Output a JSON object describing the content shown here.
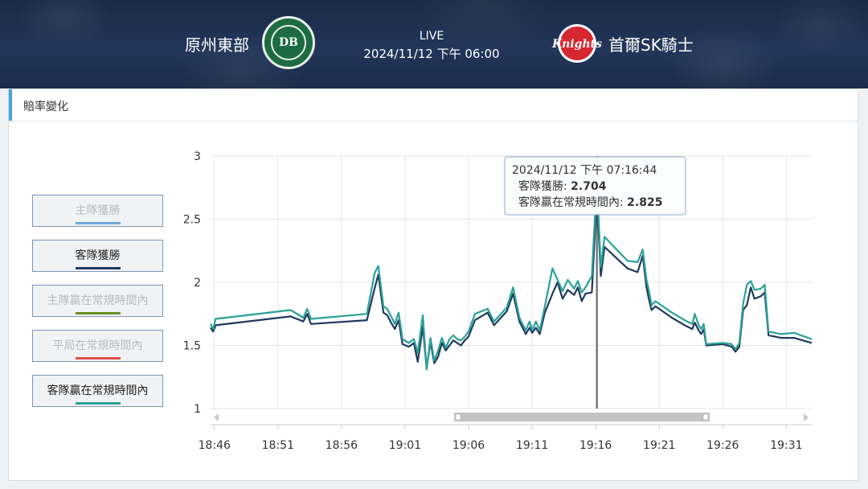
{
  "header": {
    "home_team": "原州東部",
    "home_logo_text": "DB",
    "live_label": "LIVE",
    "datetime": "2024/11/12 下午 06:00",
    "away_team": "首爾SK騎士",
    "away_logo_text": "Knights"
  },
  "panel": {
    "title": "賠率變化"
  },
  "legend": [
    {
      "label": "主隊獲勝",
      "color": "#6fa8dc",
      "active": false
    },
    {
      "label": "客隊獲勝",
      "color": "#1f3a5f",
      "active": true
    },
    {
      "label": "主隊贏在常規時間內",
      "color": "#6b8e23",
      "active": false
    },
    {
      "label": "平局在常規時間內",
      "color": "#e05050",
      "active": false
    },
    {
      "label": "客隊贏在常規時間內",
      "color": "#2aa198",
      "active": true
    }
  ],
  "tooltip": {
    "time": "2024/11/12 下午 07:16:44",
    "line1_label": "客隊獲勝:",
    "line1_value": "2.704",
    "line2_label": "客隊贏在常規時間內:",
    "line2_value": "2.825"
  },
  "chart_data": {
    "type": "line",
    "ylim": [
      1,
      3
    ],
    "yticks": [
      "3",
      "2.5",
      "2",
      "1.5",
      "1"
    ],
    "xlim_minutes": [
      45.7,
      93
    ],
    "xticks": [
      {
        "label": "18:46",
        "m": 46
      },
      {
        "label": "18:51",
        "m": 51
      },
      {
        "label": "18:56",
        "m": 56
      },
      {
        "label": "19:01",
        "m": 61
      },
      {
        "label": "19:06",
        "m": 66
      },
      {
        "label": "19:11",
        "m": 71
      },
      {
        "label": "19:16",
        "m": 76
      },
      {
        "label": "19:21",
        "m": 81
      },
      {
        "label": "19:26",
        "m": 86
      },
      {
        "label": "19:31",
        "m": 91
      }
    ],
    "crosshair_m": 76.1,
    "series": [
      {
        "name": "客隊獲勝",
        "color": "#1f3a5f",
        "points": [
          [
            45.7,
            1.64
          ],
          [
            45.9,
            1.61
          ],
          [
            46.1,
            1.66
          ],
          [
            52,
            1.73
          ],
          [
            53,
            1.69
          ],
          [
            53.3,
            1.75
          ],
          [
            53.6,
            1.67
          ],
          [
            58,
            1.7
          ],
          [
            58.6,
            1.95
          ],
          [
            58.9,
            2.06
          ],
          [
            59.3,
            1.76
          ],
          [
            59.6,
            1.74
          ],
          [
            59.9,
            1.68
          ],
          [
            60.2,
            1.63
          ],
          [
            60.5,
            1.7
          ],
          [
            60.8,
            1.51
          ],
          [
            61.3,
            1.49
          ],
          [
            61.7,
            1.52
          ],
          [
            62,
            1.37
          ],
          [
            62.4,
            1.65
          ],
          [
            62.7,
            1.32
          ],
          [
            63,
            1.53
          ],
          [
            63.3,
            1.36
          ],
          [
            63.6,
            1.41
          ],
          [
            63.9,
            1.52
          ],
          [
            64.2,
            1.46
          ],
          [
            64.5,
            1.5
          ],
          [
            64.8,
            1.54
          ],
          [
            65.1,
            1.52
          ],
          [
            65.4,
            1.5
          ],
          [
            65.7,
            1.54
          ],
          [
            66.0,
            1.57
          ],
          [
            66.5,
            1.7
          ],
          [
            67.5,
            1.76
          ],
          [
            68,
            1.66
          ],
          [
            69,
            1.77
          ],
          [
            69.5,
            1.91
          ],
          [
            70,
            1.69
          ],
          [
            70.5,
            1.59
          ],
          [
            70.8,
            1.64
          ],
          [
            71,
            1.6
          ],
          [
            71.3,
            1.64
          ],
          [
            71.6,
            1.59
          ],
          [
            72,
            1.76
          ],
          [
            72.6,
            1.91
          ],
          [
            73,
            2.0
          ],
          [
            73.4,
            1.87
          ],
          [
            73.8,
            1.94
          ],
          [
            74.3,
            1.9
          ],
          [
            74.6,
            1.96
          ],
          [
            74.9,
            1.85
          ],
          [
            75.2,
            1.91
          ],
          [
            75.7,
            1.92
          ],
          [
            76.1,
            2.7
          ],
          [
            76.4,
            2.05
          ],
          [
            76.7,
            2.28
          ],
          [
            78.5,
            2.11
          ],
          [
            79.3,
            2.08
          ],
          [
            79.7,
            2.21
          ],
          [
            80,
            1.96
          ],
          [
            80.2,
            1.86
          ],
          [
            80.4,
            1.78
          ],
          [
            80.7,
            1.81
          ],
          [
            82,
            1.72
          ],
          [
            83,
            1.66
          ],
          [
            83.6,
            1.63
          ],
          [
            83.8,
            1.68
          ],
          [
            84.1,
            1.62
          ],
          [
            84.3,
            1.59
          ],
          [
            84.5,
            1.63
          ],
          [
            84.7,
            1.5
          ],
          [
            86,
            1.51
          ],
          [
            86.7,
            1.49
          ],
          [
            87,
            1.45
          ],
          [
            87.3,
            1.49
          ],
          [
            87.6,
            1.78
          ],
          [
            87.9,
            1.82
          ],
          [
            88.2,
            1.96
          ],
          [
            88.5,
            1.87
          ],
          [
            89,
            1.89
          ],
          [
            89.3,
            1.92
          ],
          [
            89.6,
            1.58
          ],
          [
            90.6,
            1.56
          ],
          [
            91.6,
            1.56
          ],
          [
            93,
            1.52
          ]
        ]
      },
      {
        "name": "客隊贏在常規時間內",
        "color": "#2aa198",
        "points": [
          [
            45.7,
            1.67
          ],
          [
            45.9,
            1.63
          ],
          [
            46.1,
            1.71
          ],
          [
            52,
            1.78
          ],
          [
            53,
            1.72
          ],
          [
            53.3,
            1.79
          ],
          [
            53.6,
            1.71
          ],
          [
            58,
            1.75
          ],
          [
            58.6,
            2.07
          ],
          [
            58.9,
            2.13
          ],
          [
            59.3,
            1.81
          ],
          [
            59.6,
            1.79
          ],
          [
            59.9,
            1.73
          ],
          [
            60.2,
            1.67
          ],
          [
            60.5,
            1.76
          ],
          [
            60.8,
            1.55
          ],
          [
            61.3,
            1.52
          ],
          [
            61.7,
            1.55
          ],
          [
            62,
            1.44
          ],
          [
            62.4,
            1.74
          ],
          [
            62.7,
            1.31
          ],
          [
            63,
            1.56
          ],
          [
            63.3,
            1.38
          ],
          [
            63.6,
            1.46
          ],
          [
            63.9,
            1.56
          ],
          [
            64.2,
            1.48
          ],
          [
            64.5,
            1.55
          ],
          [
            64.8,
            1.58
          ],
          [
            65.1,
            1.55
          ],
          [
            65.4,
            1.54
          ],
          [
            65.7,
            1.57
          ],
          [
            66.0,
            1.61
          ],
          [
            66.5,
            1.75
          ],
          [
            67.5,
            1.79
          ],
          [
            68,
            1.69
          ],
          [
            69,
            1.8
          ],
          [
            69.5,
            1.96
          ],
          [
            70,
            1.72
          ],
          [
            70.5,
            1.62
          ],
          [
            70.8,
            1.69
          ],
          [
            71,
            1.62
          ],
          [
            71.3,
            1.69
          ],
          [
            71.6,
            1.62
          ],
          [
            72,
            1.81
          ],
          [
            72.6,
            2.11
          ],
          [
            73,
            2.02
          ],
          [
            73.4,
            1.93
          ],
          [
            73.8,
            2.02
          ],
          [
            74.3,
            1.95
          ],
          [
            74.6,
            2.01
          ],
          [
            74.9,
            1.92
          ],
          [
            75.2,
            1.96
          ],
          [
            75.7,
            2.05
          ],
          [
            76.1,
            2.82
          ],
          [
            76.4,
            2.12
          ],
          [
            76.7,
            2.36
          ],
          [
            78.5,
            2.17
          ],
          [
            79.3,
            2.16
          ],
          [
            79.7,
            2.26
          ],
          [
            80,
            2.02
          ],
          [
            80.2,
            1.93
          ],
          [
            80.4,
            1.82
          ],
          [
            80.7,
            1.85
          ],
          [
            82,
            1.76
          ],
          [
            83,
            1.7
          ],
          [
            83.6,
            1.67
          ],
          [
            83.8,
            1.75
          ],
          [
            84.1,
            1.66
          ],
          [
            84.3,
            1.63
          ],
          [
            84.5,
            1.67
          ],
          [
            84.7,
            1.51
          ],
          [
            86,
            1.52
          ],
          [
            86.7,
            1.51
          ],
          [
            87,
            1.47
          ],
          [
            87.3,
            1.52
          ],
          [
            87.6,
            1.83
          ],
          [
            87.9,
            1.98
          ],
          [
            88.2,
            2.01
          ],
          [
            88.5,
            1.94
          ],
          [
            89,
            1.95
          ],
          [
            89.3,
            1.98
          ],
          [
            89.6,
            1.61
          ],
          [
            90.6,
            1.59
          ],
          [
            91.6,
            1.6
          ],
          [
            93,
            1.55
          ]
        ]
      }
    ]
  }
}
